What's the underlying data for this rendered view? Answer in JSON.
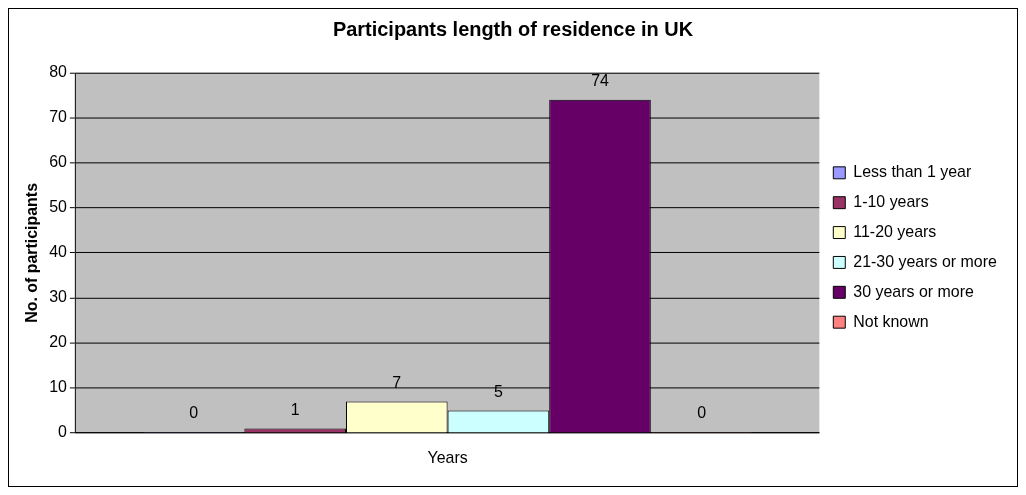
{
  "chart_data": {
    "type": "bar",
    "title": "Participants length of residence in UK",
    "ylabel": "No. of participants",
    "categories": [
      "Years"
    ],
    "series": [
      {
        "name": "Less than 1 year",
        "color": "#9999ff",
        "values": [
          0
        ]
      },
      {
        "name": "1-10 years",
        "color": "#993366",
        "values": [
          1
        ]
      },
      {
        "name": "11-20 years",
        "color": "#ffffcc",
        "values": [
          7
        ]
      },
      {
        "name": "21-30 years or more",
        "color": "#ccffff",
        "values": [
          5
        ]
      },
      {
        "name": "30 years or more",
        "color": "#660066",
        "values": [
          74
        ]
      },
      {
        "name": "Not known",
        "color": "#ff8080",
        "values": [
          0
        ]
      }
    ],
    "ylim": [
      0,
      80
    ],
    "yticks": [
      0,
      10,
      20,
      30,
      40,
      50,
      60,
      70,
      80
    ],
    "grid": "y",
    "legend": "right",
    "data_labels": true
  }
}
